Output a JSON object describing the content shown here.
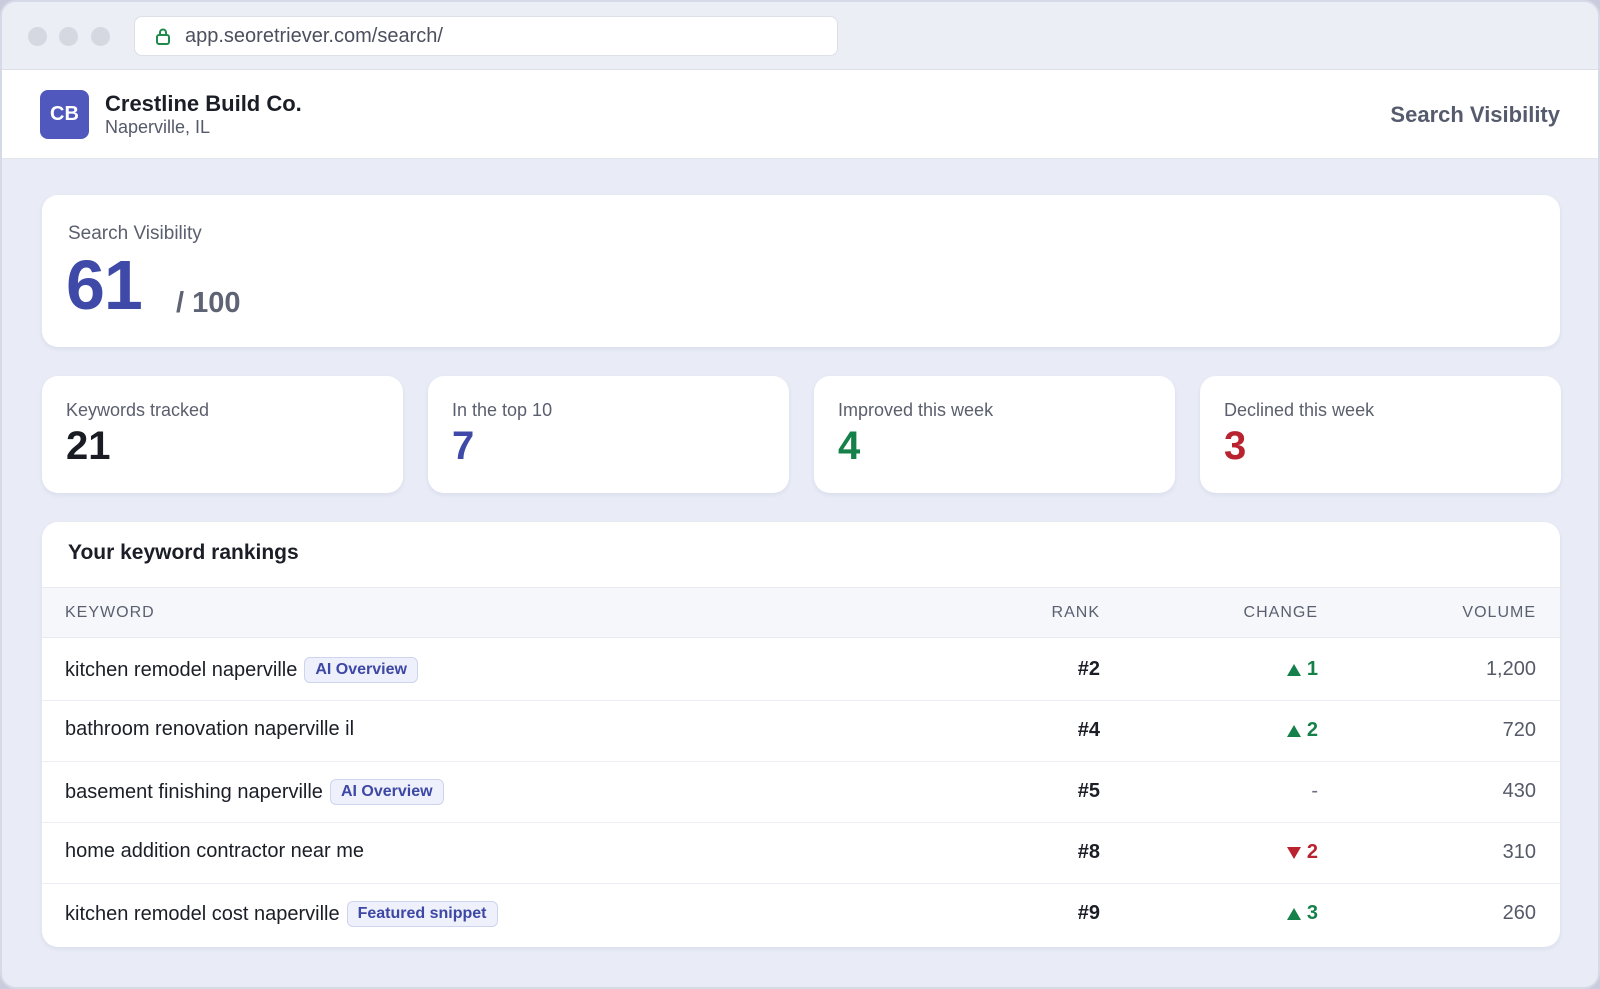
{
  "browser": {
    "url": "app.seoretriever.com/search/"
  },
  "header": {
    "logo_initials": "CB",
    "business_name": "Crestline Build Co.",
    "location": "Naperville, IL",
    "page_title": "Search Visibility"
  },
  "visibility": {
    "label": "Search Visibility",
    "score": "61",
    "max": "/ 100"
  },
  "stats": [
    {
      "label": "Keywords tracked",
      "value": "21",
      "color": "#1a1c24"
    },
    {
      "label": "In the top 10",
      "value": "7",
      "color": "#3f4aa8"
    },
    {
      "label": "Improved this week",
      "value": "4",
      "color": "#16804a"
    },
    {
      "label": "Declined this week",
      "value": "3",
      "color": "#b8232f"
    }
  ],
  "rankings": {
    "title": "Your keyword rankings",
    "columns": {
      "keyword": "KEYWORD",
      "rank": "RANK",
      "change": "CHANGE",
      "volume": "VOLUME"
    },
    "rows": [
      {
        "keyword": "kitchen remodel naperville",
        "badge": "AI Overview",
        "rank": "#2",
        "change_dir": "up",
        "change": "1",
        "volume": "1,200"
      },
      {
        "keyword": "bathroom renovation naperville il",
        "badge": "",
        "rank": "#4",
        "change_dir": "up",
        "change": "2",
        "volume": "720"
      },
      {
        "keyword": "basement finishing naperville",
        "badge": "AI Overview",
        "rank": "#5",
        "change_dir": "none",
        "change": "-",
        "volume": "430"
      },
      {
        "keyword": "home addition contractor near me",
        "badge": "",
        "rank": "#8",
        "change_dir": "down",
        "change": "2",
        "volume": "310"
      },
      {
        "keyword": "kitchen remodel cost naperville",
        "badge": "Featured snippet",
        "rank": "#9",
        "change_dir": "up",
        "change": "3",
        "volume": "260"
      }
    ]
  },
  "colors": {
    "accent": "#3f4aa8",
    "logo_bg": "#5058bd",
    "up": "#16804a",
    "down": "#b8232f",
    "neutral": "#6b7080"
  }
}
